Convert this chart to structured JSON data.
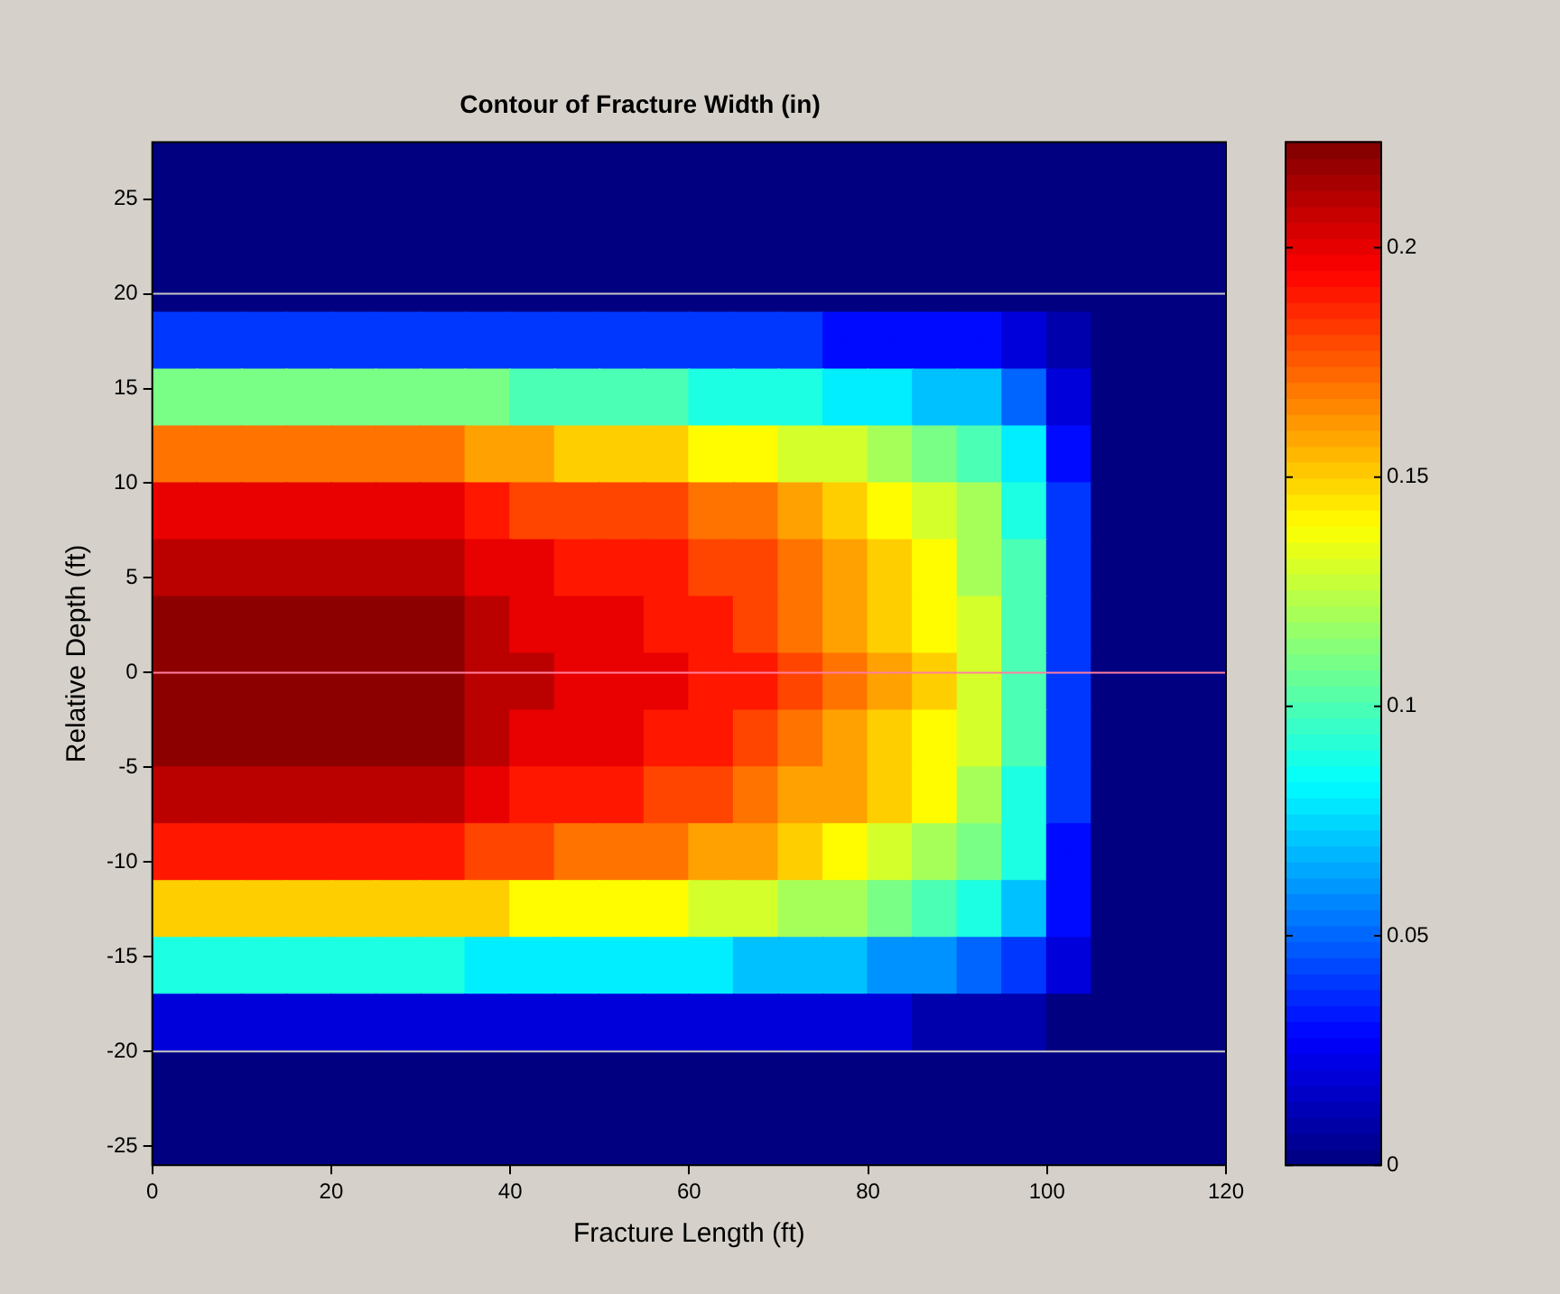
{
  "chart_data": {
    "type": "scatter",
    "title": "Contour of Fracture Width (in)",
    "xlabel": "Fracture Length (ft)",
    "ylabel": "Relative Depth (ft)",
    "marker": "square",
    "xlim": [
      0,
      120
    ],
    "xticks": [
      0,
      20,
      40,
      60,
      80,
      100,
      120
    ],
    "ylim": [
      -26,
      28
    ],
    "yticks": [
      -25,
      -20,
      -15,
      -10,
      -5,
      0,
      5,
      10,
      15,
      20,
      25
    ],
    "clim": [
      0,
      0.223
    ],
    "cticks": [
      0,
      0.05,
      0.1,
      0.15,
      0.2
    ],
    "ref_lines": [
      {
        "axis": "y",
        "value": 20,
        "color": "#c8c8c8"
      },
      {
        "axis": "y",
        "value": -20,
        "color": "#c8c8c8"
      },
      {
        "axis": "y",
        "value": 0,
        "color": "#ff7f9f"
      }
    ],
    "x": [
      2.5,
      7.5,
      12.5,
      17.5,
      22.5,
      27.5,
      32.5,
      37.5,
      42.5,
      47.5,
      52.5,
      57.5,
      62.5,
      67.5,
      72.5,
      77.5,
      82.5,
      87.5,
      92.5,
      97.5,
      102.5,
      107.5,
      112.5,
      117.5,
      2.5,
      7.5,
      12.5,
      17.5,
      22.5,
      27.5,
      32.5,
      37.5,
      42.5,
      47.5,
      52.5,
      57.5,
      62.5,
      67.5,
      72.5,
      77.5,
      82.5,
      87.5,
      92.5,
      97.5,
      102.5,
      107.5,
      112.5,
      117.5,
      2.5,
      7.5,
      12.5,
      17.5,
      22.5,
      27.5,
      32.5,
      37.5,
      42.5,
      47.5,
      52.5,
      57.5,
      62.5,
      67.5,
      72.5,
      77.5,
      82.5,
      87.5,
      92.5,
      97.5,
      102.5,
      107.5,
      112.5,
      117.5,
      2.5,
      7.5,
      12.5,
      17.5,
      22.5,
      27.5,
      32.5,
      37.5,
      42.5,
      47.5,
      52.5,
      57.5,
      62.5,
      67.5,
      72.5,
      77.5,
      82.5,
      87.5,
      92.5,
      97.5,
      102.5,
      107.5,
      112.5,
      117.5,
      2.5,
      7.5,
      12.5,
      17.5,
      22.5,
      27.5,
      32.5,
      37.5,
      42.5,
      47.5,
      52.5,
      57.5,
      62.5,
      67.5,
      72.5,
      77.5,
      82.5,
      87.5,
      92.5,
      97.5,
      102.5,
      107.5,
      112.5,
      117.5,
      2.5,
      7.5,
      12.5,
      17.5,
      22.5,
      27.5,
      32.5,
      37.5,
      42.5,
      47.5,
      52.5,
      57.5,
      62.5,
      67.5,
      72.5,
      77.5,
      82.5,
      87.5,
      92.5,
      97.5,
      102.5,
      107.5,
      112.5,
      117.5,
      2.5,
      7.5,
      12.5,
      17.5,
      22.5,
      27.5,
      32.5,
      37.5,
      42.5,
      47.5,
      52.5,
      57.5,
      62.5,
      67.5,
      72.5,
      77.5,
      82.5,
      87.5,
      92.5,
      97.5,
      102.5,
      107.5,
      112.5,
      117.5,
      2.5,
      7.5,
      12.5,
      17.5,
      22.5,
      27.5,
      32.5,
      37.5,
      42.5,
      47.5,
      52.5,
      57.5,
      62.5,
      67.5,
      72.5,
      77.5,
      82.5,
      87.5,
      92.5,
      97.5,
      102.5,
      107.5,
      112.5,
      117.5,
      2.5,
      7.5,
      12.5,
      17.5,
      22.5,
      27.5,
      32.5,
      37.5,
      42.5,
      47.5,
      52.5,
      57.5,
      62.5,
      67.5,
      72.5,
      77.5,
      82.5,
      87.5,
      92.5,
      97.5,
      102.5,
      107.5,
      112.5,
      117.5,
      2.5,
      7.5,
      12.5,
      17.5,
      22.5,
      27.5,
      32.5,
      37.5,
      42.5,
      47.5,
      52.5,
      57.5,
      62.5,
      67.5,
      72.5,
      77.5,
      82.5,
      87.5,
      92.5,
      97.5,
      102.5,
      107.5,
      112.5,
      117.5,
      2.5,
      7.5,
      12.5,
      17.5,
      22.5,
      27.5,
      32.5,
      37.5,
      42.5,
      47.5,
      52.5,
      57.5,
      62.5,
      67.5,
      72.5,
      77.5,
      82.5,
      87.5,
      92.5,
      97.5,
      102.5,
      107.5,
      112.5,
      117.5,
      2.5,
      7.5,
      12.5,
      17.5,
      22.5,
      27.5,
      32.5,
      37.5,
      42.5,
      47.5,
      52.5,
      57.5,
      62.5,
      67.5,
      72.5,
      77.5,
      82.5,
      87.5,
      92.5,
      97.5,
      102.5,
      107.5,
      112.5,
      117.5,
      2.5,
      7.5,
      12.5,
      17.5,
      22.5,
      27.5,
      32.5,
      37.5,
      42.5,
      47.5,
      52.5,
      57.5,
      62.5,
      67.5,
      72.5,
      77.5,
      82.5,
      87.5,
      92.5,
      97.5,
      102.5,
      107.5,
      112.5,
      117.5,
      2.5,
      7.5,
      12.5,
      17.5,
      22.5,
      27.5,
      32.5,
      37.5,
      42.5,
      47.5,
      52.5,
      57.5,
      62.5,
      67.5,
      72.5,
      77.5,
      82.5,
      87.5,
      92.5,
      97.5,
      102.5,
      107.5,
      112.5,
      117.5,
      2.5,
      7.5,
      12.5,
      17.5,
      22.5,
      27.5,
      32.5,
      37.5,
      42.5,
      47.5,
      52.5,
      57.5,
      62.5,
      67.5,
      72.5,
      77.5,
      82.5,
      87.5,
      92.5,
      97.5,
      102.5,
      107.5,
      112.5,
      117.5,
      2.5,
      7.5,
      12.5,
      17.5,
      22.5,
      27.5,
      32.5,
      37.5,
      42.5,
      47.5,
      52.5,
      57.5,
      62.5,
      67.5,
      72.5,
      77.5,
      82.5,
      87.5,
      92.5,
      97.5,
      102.5,
      107.5,
      112.5,
      117.5,
      2.5,
      7.5,
      12.5,
      17.5,
      22.5,
      27.5,
      32.5,
      37.5,
      42.5,
      47.5,
      52.5,
      57.5,
      62.5,
      67.5,
      72.5,
      77.5,
      82.5,
      87.5,
      92.5,
      97.5,
      102.5,
      107.5,
      112.5,
      117.5,
      2.5,
      7.5,
      12.5,
      17.5,
      22.5,
      27.5,
      32.5,
      37.5,
      42.5,
      47.5,
      52.5,
      57.5,
      62.5,
      67.5,
      72.5,
      77.5,
      82.5,
      87.5,
      92.5,
      97.5,
      102.5,
      107.5,
      112.5,
      117.5
    ],
    "values": [
      26.5,
      26.5,
      26.5,
      26.5,
      26.5,
      26.5,
      26.5,
      26.5,
      26.5,
      26.5,
      26.5,
      26.5,
      26.5,
      26.5,
      26.5,
      26.5,
      26.5,
      26.5,
      26.5,
      26.5,
      26.5,
      26.5,
      26.5,
      26.5,
      23.5,
      23.5,
      23.5,
      23.5,
      23.5,
      23.5,
      23.5,
      23.5,
      23.5,
      23.5,
      23.5,
      23.5,
      23.5,
      23.5,
      23.5,
      23.5,
      23.5,
      23.5,
      23.5,
      23.5,
      23.5,
      23.5,
      23.5,
      23.5,
      20.5,
      20.5,
      20.5,
      20.5,
      20.5,
      20.5,
      20.5,
      20.5,
      20.5,
      20.5,
      20.5,
      20.5,
      20.5,
      20.5,
      20.5,
      20.5,
      20.5,
      20.5,
      20.5,
      20.5,
      20.5,
      20.5,
      20.5,
      20.5,
      17.5,
      17.5,
      17.5,
      17.5,
      17.5,
      17.5,
      17.5,
      17.5,
      17.5,
      17.5,
      17.5,
      17.5,
      17.5,
      17.5,
      17.5,
      17.5,
      17.5,
      17.5,
      17.5,
      17.5,
      17.5,
      17.5,
      17.5,
      17.5,
      14.5,
      14.5,
      14.5,
      14.5,
      14.5,
      14.5,
      14.5,
      14.5,
      14.5,
      14.5,
      14.5,
      14.5,
      14.5,
      14.5,
      14.5,
      14.5,
      14.5,
      14.5,
      14.5,
      14.5,
      14.5,
      14.5,
      14.5,
      14.5,
      11.5,
      11.5,
      11.5,
      11.5,
      11.5,
      11.5,
      11.5,
      11.5,
      11.5,
      11.5,
      11.5,
      11.5,
      11.5,
      11.5,
      11.5,
      11.5,
      11.5,
      11.5,
      11.5,
      11.5,
      11.5,
      11.5,
      11.5,
      11.5,
      8.5,
      8.5,
      8.5,
      8.5,
      8.5,
      8.5,
      8.5,
      8.5,
      8.5,
      8.5,
      8.5,
      8.5,
      8.5,
      8.5,
      8.5,
      8.5,
      8.5,
      8.5,
      8.5,
      8.5,
      8.5,
      8.5,
      8.5,
      8.5,
      5.5,
      5.5,
      5.5,
      5.5,
      5.5,
      5.5,
      5.5,
      5.5,
      5.5,
      5.5,
      5.5,
      5.5,
      5.5,
      5.5,
      5.5,
      5.5,
      5.5,
      5.5,
      5.5,
      5.5,
      5.5,
      5.5,
      5.5,
      5.5,
      2.5,
      2.5,
      2.5,
      2.5,
      2.5,
      2.5,
      2.5,
      2.5,
      2.5,
      2.5,
      2.5,
      2.5,
      2.5,
      2.5,
      2.5,
      2.5,
      2.5,
      2.5,
      2.5,
      2.5,
      2.5,
      2.5,
      2.5,
      2.5,
      -0.5,
      -0.5,
      -0.5,
      -0.5,
      -0.5,
      -0.5,
      -0.5,
      -0.5,
      -0.5,
      -0.5,
      -0.5,
      -0.5,
      -0.5,
      -0.5,
      -0.5,
      -0.5,
      -0.5,
      -0.5,
      -0.5,
      -0.5,
      -0.5,
      -0.5,
      -0.5,
      -0.5,
      -3.5,
      -3.5,
      -3.5,
      -3.5,
      -3.5,
      -3.5,
      -3.5,
      -3.5,
      -3.5,
      -3.5,
      -3.5,
      -3.5,
      -3.5,
      -3.5,
      -3.5,
      -3.5,
      -3.5,
      -3.5,
      -3.5,
      -3.5,
      -3.5,
      -3.5,
      -3.5,
      -3.5,
      -6.5,
      -6.5,
      -6.5,
      -6.5,
      -6.5,
      -6.5,
      -6.5,
      -6.5,
      -6.5,
      -6.5,
      -6.5,
      -6.5,
      -6.5,
      -6.5,
      -6.5,
      -6.5,
      -6.5,
      -6.5,
      -6.5,
      -6.5,
      -6.5,
      -6.5,
      -6.5,
      -6.5,
      -9.5,
      -9.5,
      -9.5,
      -9.5,
      -9.5,
      -9.5,
      -9.5,
      -9.5,
      -9.5,
      -9.5,
      -9.5,
      -9.5,
      -9.5,
      -9.5,
      -9.5,
      -9.5,
      -9.5,
      -9.5,
      -9.5,
      -9.5,
      -9.5,
      -9.5,
      -9.5,
      -9.5,
      -12.5,
      -12.5,
      -12.5,
      -12.5,
      -12.5,
      -12.5,
      -12.5,
      -12.5,
      -12.5,
      -12.5,
      -12.5,
      -12.5,
      -12.5,
      -12.5,
      -12.5,
      -12.5,
      -12.5,
      -12.5,
      -12.5,
      -12.5,
      -12.5,
      -12.5,
      -12.5,
      -12.5,
      -15.5,
      -15.5,
      -15.5,
      -15.5,
      -15.5,
      -15.5,
      -15.5,
      -15.5,
      -15.5,
      -15.5,
      -15.5,
      -15.5,
      -15.5,
      -15.5,
      -15.5,
      -15.5,
      -15.5,
      -15.5,
      -15.5,
      -15.5,
      -15.5,
      -15.5,
      -15.5,
      -15.5,
      -18.5,
      -18.5,
      -18.5,
      -18.5,
      -18.5,
      -18.5,
      -18.5,
      -18.5,
      -18.5,
      -18.5,
      -18.5,
      -18.5,
      -18.5,
      -18.5,
      -18.5,
      -18.5,
      -18.5,
      -18.5,
      -18.5,
      -18.5,
      -18.5,
      -18.5,
      -18.5,
      -18.5,
      -21.5,
      -21.5,
      -21.5,
      -21.5,
      -21.5,
      -21.5,
      -21.5,
      -21.5,
      -21.5,
      -21.5,
      -21.5,
      -21.5,
      -21.5,
      -21.5,
      -21.5,
      -21.5,
      -21.5,
      -21.5,
      -21.5,
      -21.5,
      -21.5,
      -21.5,
      -21.5,
      -21.5,
      -24.5,
      -24.5,
      -24.5,
      -24.5,
      -24.5,
      -24.5,
      -24.5,
      -24.5,
      -24.5,
      -24.5,
      -24.5,
      -24.5,
      -24.5,
      -24.5,
      -24.5,
      -24.5,
      -24.5,
      -24.5,
      -24.5,
      -24.5,
      -24.5,
      -24.5,
      -24.5,
      -24.5
    ],
    "cvalues": [
      0,
      0,
      0,
      0,
      0,
      0,
      0,
      0,
      0,
      0,
      0,
      0,
      0,
      0,
      0,
      0,
      0,
      0,
      0,
      0,
      0,
      0,
      0,
      0,
      0,
      0,
      0,
      0,
      0,
      0,
      0,
      0,
      0,
      0,
      0,
      0,
      0,
      0,
      0,
      0,
      0,
      0,
      0,
      0,
      0,
      0,
      0,
      0,
      0,
      0,
      0,
      0,
      0,
      0,
      0,
      0,
      0,
      0,
      0,
      0,
      0,
      0,
      0,
      0,
      0,
      0,
      0,
      0,
      0,
      0,
      0,
      0,
      0.04,
      0.04,
      0.04,
      0.04,
      0.04,
      0.04,
      0.04,
      0.04,
      0.04,
      0.04,
      0.04,
      0.04,
      0.04,
      0.04,
      0.04,
      0.03,
      0.03,
      0.03,
      0.03,
      0.02,
      0.01,
      0,
      0,
      0,
      0.11,
      0.11,
      0.11,
      0.11,
      0.11,
      0.11,
      0.11,
      0.11,
      0.1,
      0.1,
      0.1,
      0.1,
      0.09,
      0.09,
      0.09,
      0.08,
      0.08,
      0.07,
      0.07,
      0.05,
      0.02,
      0,
      0,
      0,
      0.17,
      0.17,
      0.17,
      0.17,
      0.17,
      0.17,
      0.17,
      0.16,
      0.16,
      0.15,
      0.15,
      0.15,
      0.14,
      0.14,
      0.13,
      0.13,
      0.12,
      0.11,
      0.1,
      0.08,
      0.03,
      0,
      0,
      0,
      0.2,
      0.2,
      0.2,
      0.2,
      0.2,
      0.2,
      0.2,
      0.19,
      0.18,
      0.18,
      0.18,
      0.18,
      0.17,
      0.17,
      0.16,
      0.15,
      0.14,
      0.13,
      0.12,
      0.09,
      0.04,
      0,
      0,
      0,
      0.21,
      0.21,
      0.21,
      0.21,
      0.21,
      0.21,
      0.21,
      0.2,
      0.2,
      0.19,
      0.19,
      0.19,
      0.18,
      0.18,
      0.17,
      0.16,
      0.15,
      0.14,
      0.12,
      0.1,
      0.04,
      0,
      0,
      0,
      0.22,
      0.22,
      0.22,
      0.22,
      0.22,
      0.22,
      0.22,
      0.21,
      0.2,
      0.2,
      0.2,
      0.19,
      0.19,
      0.18,
      0.17,
      0.16,
      0.15,
      0.14,
      0.13,
      0.1,
      0.04,
      0,
      0,
      0,
      0.22,
      0.22,
      0.22,
      0.22,
      0.22,
      0.22,
      0.22,
      0.21,
      0.21,
      0.2,
      0.2,
      0.2,
      0.19,
      0.19,
      0.18,
      0.17,
      0.16,
      0.15,
      0.13,
      0.1,
      0.04,
      0,
      0,
      0,
      0.22,
      0.22,
      0.22,
      0.22,
      0.22,
      0.22,
      0.22,
      0.21,
      0.2,
      0.2,
      0.2,
      0.19,
      0.19,
      0.18,
      0.17,
      0.16,
      0.15,
      0.14,
      0.13,
      0.1,
      0.04,
      0,
      0,
      0,
      0.21,
      0.21,
      0.21,
      0.21,
      0.21,
      0.21,
      0.21,
      0.2,
      0.19,
      0.19,
      0.19,
      0.18,
      0.18,
      0.17,
      0.16,
      0.16,
      0.15,
      0.14,
      0.12,
      0.09,
      0.04,
      0,
      0,
      0,
      0.19,
      0.19,
      0.19,
      0.19,
      0.19,
      0.19,
      0.19,
      0.18,
      0.18,
      0.17,
      0.17,
      0.17,
      0.16,
      0.16,
      0.15,
      0.14,
      0.13,
      0.12,
      0.11,
      0.09,
      0.03,
      0,
      0,
      0,
      0.15,
      0.15,
      0.15,
      0.15,
      0.15,
      0.15,
      0.15,
      0.15,
      0.14,
      0.14,
      0.14,
      0.14,
      0.13,
      0.13,
      0.12,
      0.12,
      0.11,
      0.1,
      0.09,
      0.07,
      0.03,
      0,
      0,
      0,
      0.09,
      0.09,
      0.09,
      0.09,
      0.09,
      0.09,
      0.09,
      0.08,
      0.08,
      0.08,
      0.08,
      0.08,
      0.08,
      0.07,
      0.07,
      0.07,
      0.06,
      0.06,
      0.05,
      0.04,
      0.02,
      0,
      0,
      0,
      0.02,
      0.02,
      0.02,
      0.02,
      0.02,
      0.02,
      0.02,
      0.02,
      0.02,
      0.02,
      0.02,
      0.02,
      0.02,
      0.02,
      0.02,
      0.02,
      0.02,
      0.01,
      0.01,
      0.01,
      0,
      0,
      0,
      0,
      0,
      0,
      0,
      0,
      0,
      0,
      0,
      0,
      0,
      0,
      0,
      0,
      0,
      0,
      0,
      0,
      0,
      0,
      0,
      0,
      0,
      0,
      0,
      0,
      0,
      0,
      0,
      0,
      0,
      0,
      0,
      0,
      0,
      0,
      0,
      0,
      0,
      0,
      0,
      0,
      0,
      0,
      0,
      0,
      0,
      0,
      0,
      0
    ]
  }
}
